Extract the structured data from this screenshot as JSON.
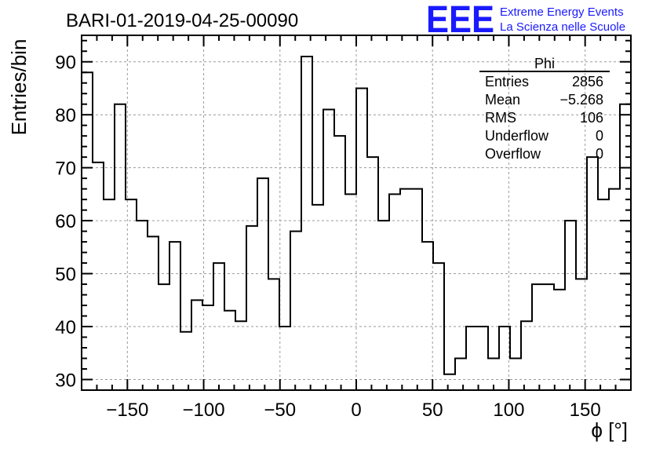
{
  "run_label": "BARI-01-2019-04-25-00090",
  "logo": {
    "text": "EEE",
    "line1": "Extreme Energy Events",
    "line2": "La Scienza nelle Scuole",
    "color": "#1a1aff"
  },
  "stats": {
    "title": "Phi",
    "rows": [
      {
        "label": "Entries",
        "value": "2856"
      },
      {
        "label": "Mean",
        "value": "−5.268"
      },
      {
        "label": "RMS",
        "value": "106"
      },
      {
        "label": "Underflow",
        "value": "0"
      },
      {
        "label": "Overflow",
        "value": "0"
      }
    ]
  },
  "chart_data": {
    "type": "bar",
    "style": "step-histogram",
    "xlabel": "ϕ [°]",
    "ylabel": "Entries/bin",
    "xlim": [
      -180,
      180
    ],
    "ylim": [
      28,
      95
    ],
    "grid": true,
    "xticks": [
      -150,
      -100,
      -50,
      0,
      50,
      100,
      150
    ],
    "xtick_labels": [
      "−150",
      "−100",
      "−50",
      "0",
      "50",
      "100",
      "150"
    ],
    "yticks": [
      30,
      40,
      50,
      60,
      70,
      80,
      90
    ],
    "bin_width": 7.2,
    "values": [
      88,
      71,
      64,
      82,
      64,
      60,
      57,
      48,
      56,
      39,
      45,
      44,
      52,
      43,
      41,
      59,
      68,
      49,
      40,
      58,
      91,
      63,
      81,
      76,
      65,
      85,
      72,
      60,
      65,
      66,
      66,
      56,
      52,
      31,
      34,
      40,
      40,
      34,
      40,
      34,
      41,
      48,
      48,
      47,
      60,
      49,
      72,
      64,
      66,
      82
    ]
  }
}
